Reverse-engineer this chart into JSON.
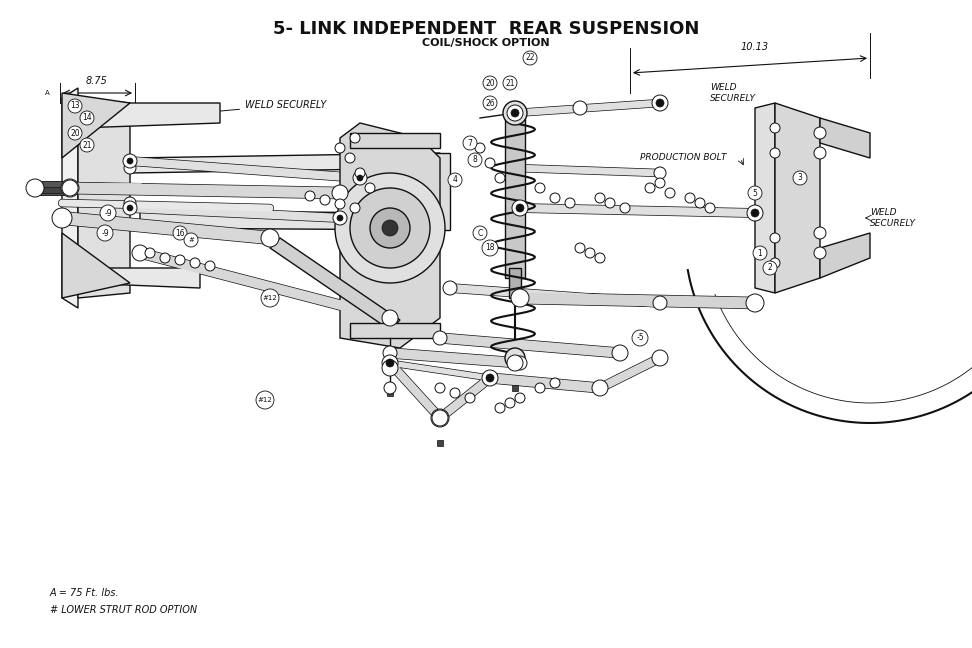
{
  "title": "5- LINK INDEPENDENT  REAR SUSPENSION",
  "subtitle": "COIL/SHOCK OPTION",
  "footnote_1": "A = 75 Ft. lbs.",
  "footnote_2": "# LOWER STRUT ROD OPTION",
  "bg_color": "#ffffff",
  "line_color": "#111111",
  "title_fontsize": 13,
  "subtitle_fontsize": 8,
  "footnote_fontsize": 7,
  "fig_width": 9.72,
  "fig_height": 6.48,
  "dpi": 100
}
